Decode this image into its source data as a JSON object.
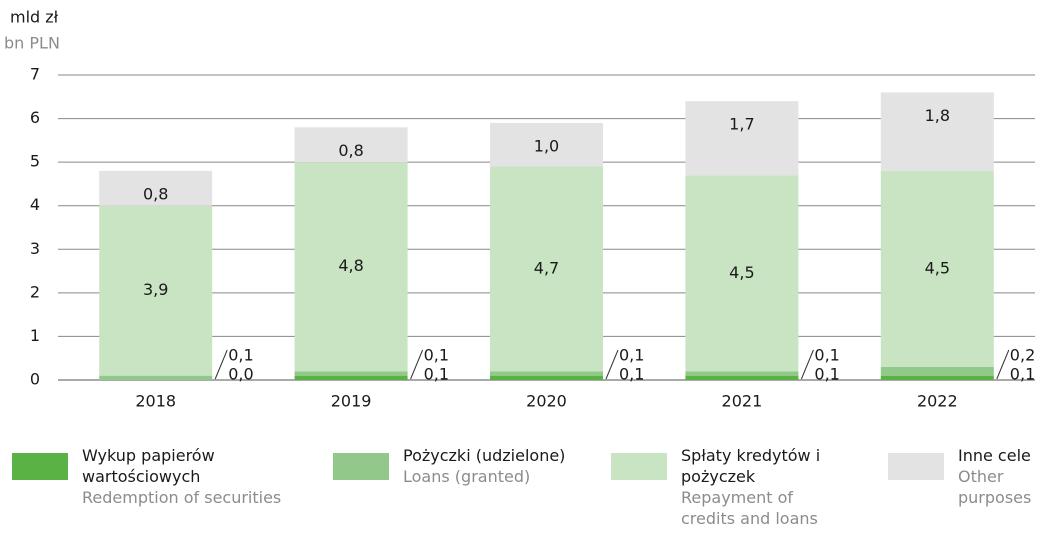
{
  "chart_data": {
    "type": "stacked_bar",
    "y_label": "mld zł",
    "y_label_en": "bn PLN",
    "categories": [
      "2018",
      "2019",
      "2020",
      "2021",
      "2022"
    ],
    "ylim": [
      0,
      7
    ],
    "yticks": [
      0,
      1,
      2,
      3,
      4,
      5,
      6,
      7
    ],
    "grid": true,
    "series": [
      {
        "name": "Wykup papierów wartościowych",
        "name_en": "Redemption of securities",
        "color": "#5bb244",
        "values": [
          0.0,
          0.1,
          0.1,
          0.1,
          0.1
        ],
        "value_labels": [
          "0,0",
          "0,1",
          "0,1",
          "0,1",
          "0,1"
        ]
      },
      {
        "name": "Pożyczki (udzielone)",
        "name_en": "Loans (granted)",
        "color": "#92c98a",
        "values": [
          0.1,
          0.1,
          0.1,
          0.1,
          0.2
        ],
        "value_labels": [
          "0,1",
          "0,1",
          "0,1",
          "0,1",
          "0,2"
        ]
      },
      {
        "name": "Spłaty kredytów i pożyczek",
        "name_en": "Repayment of credits and loans",
        "color": "#c8e4c3",
        "values": [
          3.9,
          4.8,
          4.7,
          4.5,
          4.5
        ],
        "value_labels": [
          "3,9",
          "4,8",
          "4,7",
          "4,5",
          "4,5"
        ]
      },
      {
        "name": "Inne cele",
        "name_en": "Other purposes",
        "color": "#e3e3e3",
        "values": [
          0.8,
          0.8,
          1.0,
          1.7,
          1.8
        ],
        "value_labels": [
          "0,8",
          "0,8",
          "1,0",
          "1,7",
          "1,8"
        ]
      }
    ]
  }
}
